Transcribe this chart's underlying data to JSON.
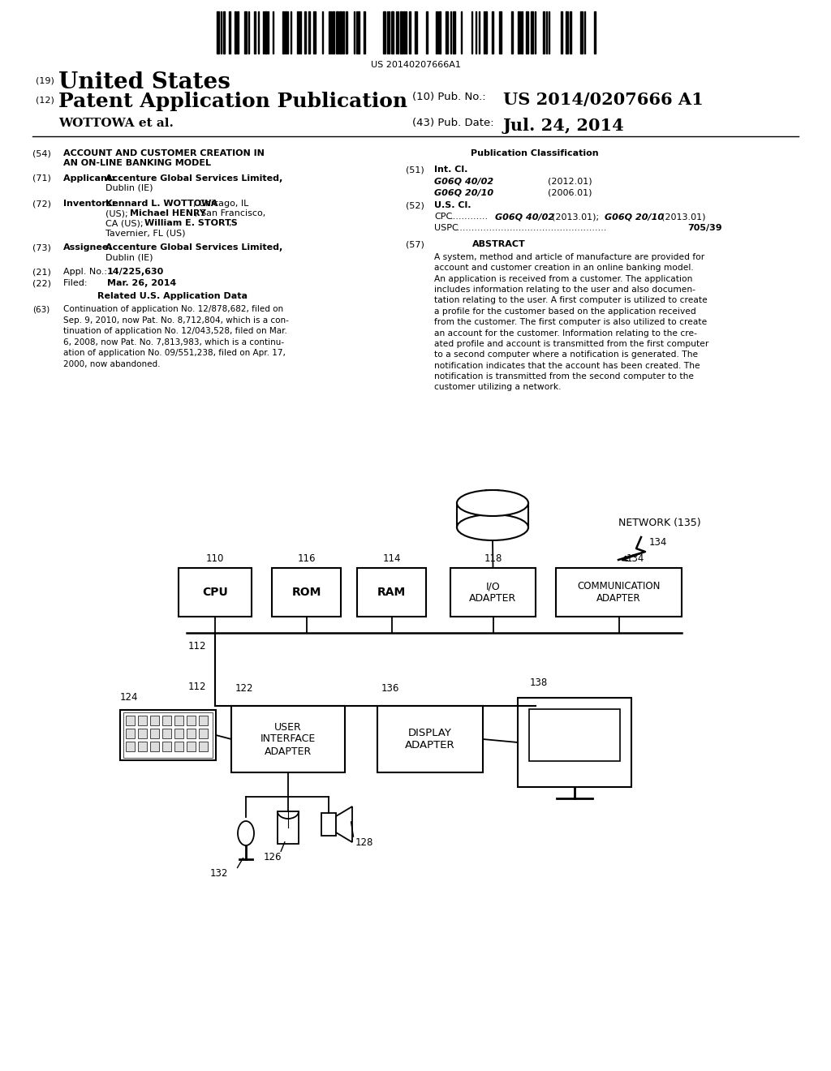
{
  "bg_color": "#ffffff",
  "page_width": 10.24,
  "page_height": 13.2,
  "barcode_text": "US 20140207666A1",
  "pub_number": "US 2014/0207666 A1",
  "pub_date": "Jul. 24, 2014",
  "abstract_text": "A system, method and article of manufacture are provided for\naccount and customer creation in an online banking model.\nAn application is received from a customer. The application\nincludes information relating to the user and also documen-\ntation relating to the user. A first computer is utilized to create\na profile for the customer based on the application received\nfrom the customer. The first computer is also utilized to create\nan account for the customer. Information relating to the cre-\nated profile and account is transmitted from the first computer\nto a second computer where a notification is generated. The\nnotification indicates that the account has been created. The\nnotification is transmitted from the second computer to the\ncustomer utilizing a network.",
  "s63_value": "Continuation of application No. 12/878,682, filed on\nSep. 9, 2010, now Pat. No. 8,712,804, which is a con-\ntinuation of application No. 12/043,528, filed on Mar.\n6, 2008, now Pat. No. 7,813,983, which is a continu-\nation of application No. 09/551,238, filed on Apr. 17,\n2000, now abandoned.",
  "diagram_box_cpu": "CPU",
  "diagram_box_rom": "ROM",
  "diagram_box_ram": "RAM",
  "diagram_box_io": "I/O\nADAPTER",
  "diagram_box_comm": "COMMUNICATION\nADAPTER",
  "diagram_box_ui": "USER\nINTERFACE\nADAPTER",
  "diagram_box_display": "DISPLAY\nADAPTER"
}
